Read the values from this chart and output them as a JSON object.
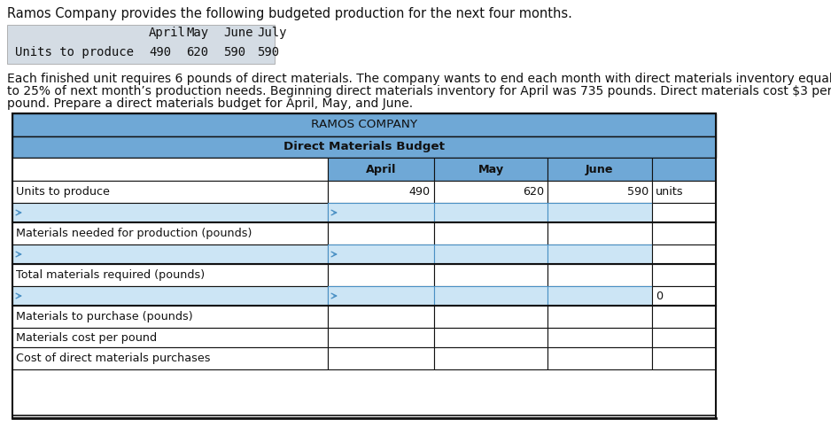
{
  "intro_text": "Ramos Company provides the following budgeted production for the next four months.",
  "intro_table_headers": [
    "April",
    "May",
    "June",
    "July"
  ],
  "intro_table_row_label": "Units to produce",
  "intro_table_values": [
    "490",
    "620",
    "590",
    "590"
  ],
  "body_text_line1": "Each finished unit requires 6 pounds of direct materials. The company wants to end each month with direct materials inventory equal",
  "body_text_line2": "to 25% of next month’s production needs. Beginning direct materials inventory for April was 735 pounds. Direct materials cost $3 per",
  "body_text_line3": "pound. Prepare a direct materials budget for April, May, and June.",
  "table_title1": "RAMOS COMPANY",
  "table_title2": "Direct Materials Budget",
  "col_headers": [
    "April",
    "May",
    "June"
  ],
  "rows": [
    {
      "label": "Units to produce",
      "values": [
        "490",
        "620",
        "590"
      ],
      "extra": "units",
      "style": "normal"
    },
    {
      "label": "",
      "values": [
        "",
        "",
        ""
      ],
      "extra": "",
      "style": "input"
    },
    {
      "label": "Materials needed for production (pounds)",
      "values": [
        "",
        "",
        ""
      ],
      "extra": "",
      "style": "normal"
    },
    {
      "label": "",
      "values": [
        "",
        "",
        ""
      ],
      "extra": "",
      "style": "input"
    },
    {
      "label": "Total materials required (pounds)",
      "values": [
        "",
        "",
        ""
      ],
      "extra": "",
      "style": "normal"
    },
    {
      "label": "",
      "values": [
        "",
        "",
        ""
      ],
      "extra": "0",
      "style": "input"
    },
    {
      "label": "Materials to purchase (pounds)",
      "values": [
        "",
        "",
        ""
      ],
      "extra": "",
      "style": "normal"
    },
    {
      "label": "Materials cost per pound",
      "values": [
        "",
        "",
        ""
      ],
      "extra": "",
      "style": "normal"
    },
    {
      "label": "Cost of direct materials purchases",
      "values": [
        "",
        "",
        ""
      ],
      "extra": "",
      "style": "last"
    }
  ],
  "header_bg": "#6fa8d6",
  "input_bg": "#cce5f5",
  "white_bg": "#ffffff",
  "dark": "#111111",
  "blue": "#4a90c4",
  "gray_bg": "#d0d8e0",
  "text_color": "#111111",
  "fs_intro": 10.5,
  "fs_body": 10.0,
  "fs_table": 9.2
}
